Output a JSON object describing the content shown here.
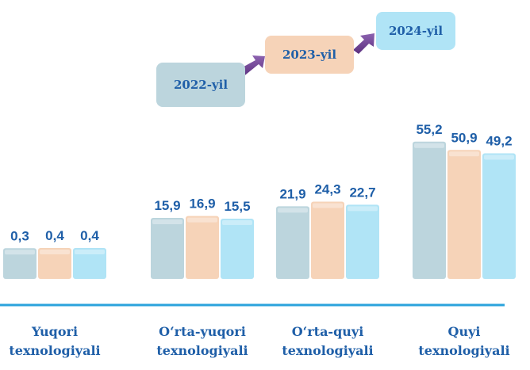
{
  "chart_data": {
    "type": "bar",
    "categories": [
      [
        "Yuqori",
        "texnologiyali"
      ],
      [
        "O‘rta-yuqori",
        "texnologiyali"
      ],
      [
        "O‘rta-quyi",
        "texnologiyali"
      ],
      [
        "Quyi",
        "texnologiyali"
      ]
    ],
    "series": [
      {
        "name": "2022-yil",
        "values": [
          0.3,
          15.9,
          21.9,
          55.2
        ],
        "labels": [
          "0,3",
          "15,9",
          "21,9",
          "55,2"
        ],
        "color": "#bcd5dd"
      },
      {
        "name": "2023-yil",
        "values": [
          0.4,
          16.9,
          24.3,
          50.9
        ],
        "labels": [
          "0,4",
          "16,9",
          "24,3",
          "50,9"
        ],
        "color": "#f6d3b8"
      },
      {
        "name": "2024-yil",
        "values": [
          0.4,
          15.5,
          22.7,
          49.2
        ],
        "labels": [
          "0,4",
          "15,5",
          "22,7",
          "49,2"
        ],
        "color": "#b0e4f6"
      }
    ],
    "legend_placement": "top-right",
    "label_color": "#1f5fa8",
    "axis_color": "#2aa3dc",
    "arrow_color": "#6a3c8c"
  }
}
